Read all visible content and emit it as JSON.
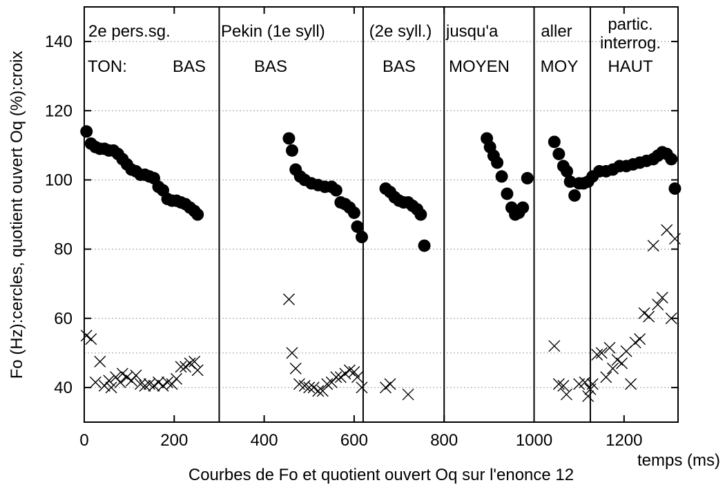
{
  "chart_data": {
    "type": "scatter",
    "title": "",
    "xlabel": "Courbes de Fo et quotient ouvert Oq sur l'enonce 12",
    "xunit_label": "temps (ms)",
    "ylabel": "Fo (Hz):cercles, quotient ouvert Oq (%):croix",
    "xlim": [
      0,
      1320
    ],
    "ylim": [
      30,
      150
    ],
    "xticks": [
      0,
      200,
      400,
      600,
      800,
      1000,
      1200
    ],
    "yticks": [
      40,
      60,
      80,
      100,
      120,
      140
    ],
    "grid_y": [
      40,
      50,
      60,
      80,
      100,
      120,
      140
    ],
    "grid": "horizontal dotted",
    "legend": "none",
    "boundaries": [
      300,
      620,
      800,
      1000,
      1125
    ],
    "segments": [
      {
        "line1": "2e pers.sg.",
        "line2a": "TON:",
        "line2b": "BAS"
      },
      {
        "line1": "Pekin (1e   syll)",
        "line2": "BAS"
      },
      {
        "line1": "(2e syll.)",
        "line2": "BAS"
      },
      {
        "line1": "jusqu'a",
        "line2": "MOYEN"
      },
      {
        "line1": "aller",
        "line2": "MOY"
      },
      {
        "line1": "partic.",
        "line1b": "interrog.",
        "line2": "HAUT"
      }
    ],
    "series": [
      {
        "name": "Fo (Hz)",
        "marker": "circle",
        "color": "#000000",
        "points": [
          [
            5,
            114
          ],
          [
            15,
            110.5
          ],
          [
            25,
            109.5
          ],
          [
            35,
            109
          ],
          [
            45,
            109
          ],
          [
            55,
            108.5
          ],
          [
            65,
            108.5
          ],
          [
            75,
            107.5
          ],
          [
            85,
            106
          ],
          [
            95,
            104.5
          ],
          [
            105,
            103
          ],
          [
            115,
            102.5
          ],
          [
            125,
            101.5
          ],
          [
            135,
            101.5
          ],
          [
            145,
            101
          ],
          [
            155,
            100.5
          ],
          [
            165,
            98
          ],
          [
            175,
            97
          ],
          [
            185,
            94.5
          ],
          [
            195,
            94
          ],
          [
            205,
            94
          ],
          [
            215,
            93.5
          ],
          [
            225,
            93
          ],
          [
            235,
            92
          ],
          [
            245,
            91
          ],
          [
            252,
            90
          ],
          [
            455,
            112
          ],
          [
            462,
            108.5
          ],
          [
            470,
            103
          ],
          [
            480,
            101
          ],
          [
            490,
            100
          ],
          [
            505,
            99
          ],
          [
            520,
            98.5
          ],
          [
            535,
            98
          ],
          [
            550,
            98
          ],
          [
            560,
            97
          ],
          [
            570,
            93.5
          ],
          [
            580,
            93
          ],
          [
            590,
            92
          ],
          [
            600,
            90.5
          ],
          [
            607,
            86.5
          ],
          [
            617,
            83.5
          ],
          [
            670,
            97.5
          ],
          [
            680,
            96.5
          ],
          [
            690,
            95
          ],
          [
            700,
            94
          ],
          [
            710,
            93.5
          ],
          [
            720,
            93.5
          ],
          [
            730,
            92.5
          ],
          [
            740,
            91.5
          ],
          [
            748,
            90
          ],
          [
            756,
            81
          ],
          [
            895,
            112
          ],
          [
            902,
            109.5
          ],
          [
            910,
            107
          ],
          [
            918,
            105
          ],
          [
            928,
            101
          ],
          [
            940,
            96
          ],
          [
            950,
            92
          ],
          [
            958,
            90
          ],
          [
            966,
            90.5
          ],
          [
            975,
            92
          ],
          [
            985,
            100.5
          ],
          [
            1045,
            111
          ],
          [
            1055,
            107.5
          ],
          [
            1065,
            104
          ],
          [
            1073,
            102.5
          ],
          [
            1080,
            99.5
          ],
          [
            1090,
            95.5
          ],
          [
            1100,
            99
          ],
          [
            1110,
            99
          ],
          [
            1120,
            99.5
          ],
          [
            1130,
            101
          ],
          [
            1145,
            102.5
          ],
          [
            1160,
            102.5
          ],
          [
            1175,
            103
          ],
          [
            1190,
            104
          ],
          [
            1205,
            104
          ],
          [
            1220,
            104.5
          ],
          [
            1235,
            105
          ],
          [
            1250,
            105.5
          ],
          [
            1265,
            106
          ],
          [
            1275,
            107
          ],
          [
            1285,
            108
          ],
          [
            1295,
            107.5
          ],
          [
            1305,
            106
          ],
          [
            1313,
            97.5
          ]
        ]
      },
      {
        "name": "Oq (%)",
        "marker": "cross",
        "color": "#000000",
        "points": [
          [
            5,
            55
          ],
          [
            15,
            54
          ],
          [
            25,
            41.5
          ],
          [
            35,
            47.5
          ],
          [
            45,
            40.5
          ],
          [
            55,
            42
          ],
          [
            60,
            40
          ],
          [
            70,
            43
          ],
          [
            80,
            41.5
          ],
          [
            85,
            44
          ],
          [
            95,
            43
          ],
          [
            105,
            42
          ],
          [
            115,
            43.5
          ],
          [
            125,
            41
          ],
          [
            135,
            40.5
          ],
          [
            145,
            41
          ],
          [
            155,
            40.5
          ],
          [
            165,
            41.5
          ],
          [
            175,
            40.5
          ],
          [
            185,
            41.5
          ],
          [
            195,
            41
          ],
          [
            205,
            42.5
          ],
          [
            215,
            46
          ],
          [
            225,
            46
          ],
          [
            235,
            47
          ],
          [
            245,
            47.5
          ],
          [
            252,
            45
          ],
          [
            455,
            65.5
          ],
          [
            462,
            50
          ],
          [
            470,
            45.5
          ],
          [
            478,
            41
          ],
          [
            490,
            40.5
          ],
          [
            500,
            40
          ],
          [
            510,
            40
          ],
          [
            520,
            39
          ],
          [
            530,
            39
          ],
          [
            540,
            41
          ],
          [
            550,
            41.5
          ],
          [
            560,
            43
          ],
          [
            570,
            43
          ],
          [
            580,
            44
          ],
          [
            590,
            45
          ],
          [
            600,
            44.5
          ],
          [
            607,
            43
          ],
          [
            617,
            40
          ],
          [
            670,
            40
          ],
          [
            680,
            41
          ],
          [
            720,
            38
          ],
          [
            1045,
            52
          ],
          [
            1055,
            41
          ],
          [
            1065,
            40.5
          ],
          [
            1072,
            38
          ],
          [
            1100,
            41
          ],
          [
            1113,
            41.5
          ],
          [
            1120,
            37.5
          ],
          [
            1125,
            39.5
          ],
          [
            1130,
            41
          ],
          [
            1140,
            49.5
          ],
          [
            1150,
            50
          ],
          [
            1160,
            43
          ],
          [
            1168,
            51.5
          ],
          [
            1175,
            45.5
          ],
          [
            1185,
            48
          ],
          [
            1195,
            47
          ],
          [
            1205,
            50.5
          ],
          [
            1215,
            41
          ],
          [
            1225,
            53
          ],
          [
            1235,
            54
          ],
          [
            1245,
            61.5
          ],
          [
            1255,
            60.5
          ],
          [
            1265,
            81
          ],
          [
            1275,
            64
          ],
          [
            1285,
            66
          ],
          [
            1295,
            85.5
          ],
          [
            1305,
            60
          ],
          [
            1313,
            83
          ]
        ]
      }
    ]
  }
}
